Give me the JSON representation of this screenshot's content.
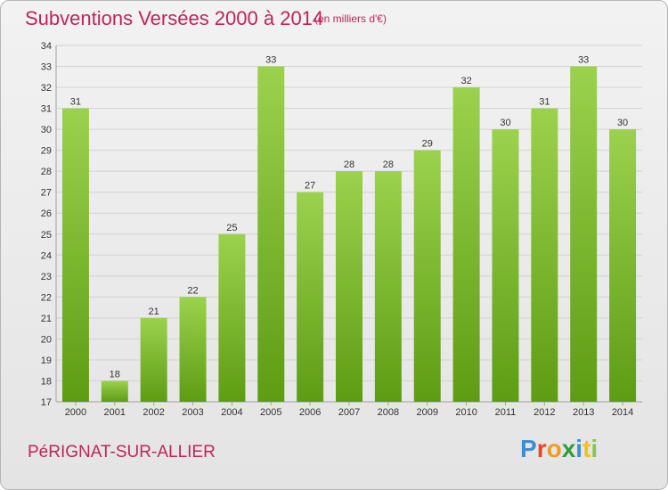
{
  "header": {
    "title": "Subventions Versées 2000 à 2014",
    "subtitle": "(en milliers d'€)"
  },
  "footer": {
    "commune": "PéRIGNAT-SUR-ALLIER",
    "brand_letters": [
      {
        "char": "P",
        "color": "#3a8fd6"
      },
      {
        "char": "r",
        "color": "#e8452c"
      },
      {
        "char": "o",
        "color": "#f39a1e"
      },
      {
        "char": "x",
        "color": "#2f9e3a"
      },
      {
        "char": "i",
        "color": "#3a8fd6"
      },
      {
        "char": "t",
        "color": "#f0c419"
      },
      {
        "char": "i",
        "color": "#8bc34a"
      }
    ]
  },
  "colors": {
    "title": "#c0245a",
    "bar_top": "#9bd24d",
    "bar_bottom": "#5e9c14",
    "grid": "#d2d2d2",
    "axis": "#a0a0a0"
  },
  "chart_data": {
    "type": "bar",
    "categories": [
      "2000",
      "2001",
      "2002",
      "2003",
      "2004",
      "2005",
      "2006",
      "2007",
      "2008",
      "2009",
      "2010",
      "2011",
      "2012",
      "2013",
      "2014"
    ],
    "values": [
      31,
      18,
      21,
      22,
      25,
      33,
      27,
      28,
      28,
      29,
      32,
      30,
      31,
      33,
      30
    ],
    "ylim": [
      17,
      34
    ],
    "yticks": [
      17,
      18,
      19,
      20,
      21,
      22,
      23,
      24,
      25,
      26,
      27,
      28,
      29,
      30,
      31,
      32,
      33,
      34
    ],
    "grid": true,
    "data_labels": true
  }
}
